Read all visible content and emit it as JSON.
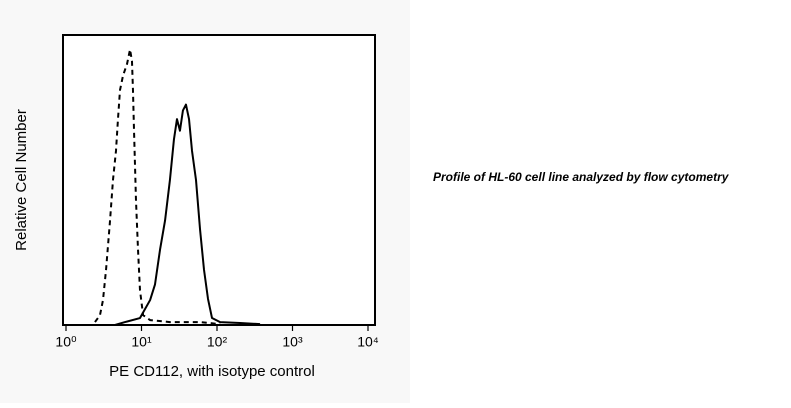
{
  "chart_data": {
    "type": "line",
    "xlabel": "PE CD112, with isotype control",
    "ylabel": "Relative Cell Number",
    "annotation": "Profile of HL-60 cell line analyzed by flow cytometry",
    "xscale": "log",
    "xlim": [
      1,
      10000
    ],
    "xticks": [
      {
        "value": 1,
        "label": "10⁰"
      },
      {
        "value": 10,
        "label": "10¹"
      },
      {
        "value": 100,
        "label": "10²"
      },
      {
        "value": 1000,
        "label": "10³"
      },
      {
        "value": 10000,
        "label": "10⁴"
      }
    ],
    "ylim": [
      0,
      100
    ],
    "grid": false,
    "series": [
      {
        "color": "#000000",
        "style": "dashed",
        "x": [
          2.42,
          2.82,
          3.09,
          3.39,
          3.83,
          4.19,
          4.59,
          4.88,
          5.19,
          5.69,
          6.43,
          7.05,
          7.48,
          7.71,
          7.96,
          8.45,
          8.99,
          9.55,
          10.5,
          13.0,
          23.8,
          59.6,
          110
        ],
        "values": [
          1.0,
          3.4,
          8.6,
          19,
          36,
          50,
          60,
          71,
          81,
          86,
          90,
          95,
          91,
          81,
          67,
          43,
          26,
          12,
          3.4,
          1.7,
          1,
          1,
          0.3
        ]
      },
      {
        "color": "#000000",
        "style": "solid",
        "x": [
          4.46,
          6.04,
          9.55,
          13.0,
          15.1,
          17.6,
          20.5,
          23.8,
          26.9,
          29.5,
          32.3,
          35.4,
          38.8,
          42.6,
          46.7,
          52.7,
          59.6,
          67.3,
          76.0,
          85.9,
          110,
          202,
          372
        ],
        "values": [
          0,
          1,
          2.4,
          8.6,
          14,
          26,
          36,
          50,
          64,
          71,
          67,
          74,
          76,
          71,
          60,
          50,
          33,
          19,
          9,
          2.4,
          1,
          0.7,
          0.3
        ]
      }
    ]
  }
}
